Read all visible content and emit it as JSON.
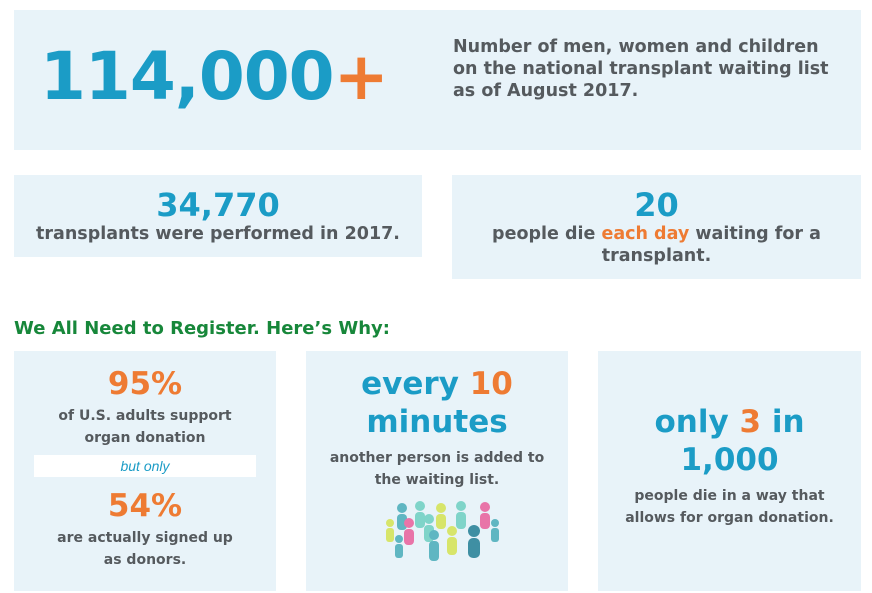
{
  "hero": {
    "number": "114,000",
    "plus": "+",
    "description": "Number of men, women and children on the national transplant waiting list as of August 2017."
  },
  "transplants": {
    "number": "34,770",
    "text": "transplants were performed in 2017."
  },
  "deaths": {
    "number": "20",
    "text_before": "people die ",
    "text_highlight": "each day",
    "text_after": " waiting for a transplant."
  },
  "section_heading": "We All Need to Register. Here’s Why:",
  "support": {
    "pct1": "95%",
    "text1": "of U.S. adults support organ donation",
    "but_only": "but only",
    "pct2": "54%",
    "text2": "are actually signed up as donors."
  },
  "minutes": {
    "line1_a": "every ",
    "line1_b": "10",
    "line2": "minutes",
    "text": "another person is added to the waiting list.",
    "icon": "people-group-icon"
  },
  "only": {
    "line1_a": "only ",
    "line1_b": "3",
    "line1_c": " in",
    "line2": "1,000",
    "text": "people die in a way that allows for organ donation."
  },
  "colors": {
    "blue": "#1b9cc6",
    "orange": "#ee7b33",
    "green": "#17873a",
    "card": "#e8f3f9",
    "text": "#555a5e"
  }
}
